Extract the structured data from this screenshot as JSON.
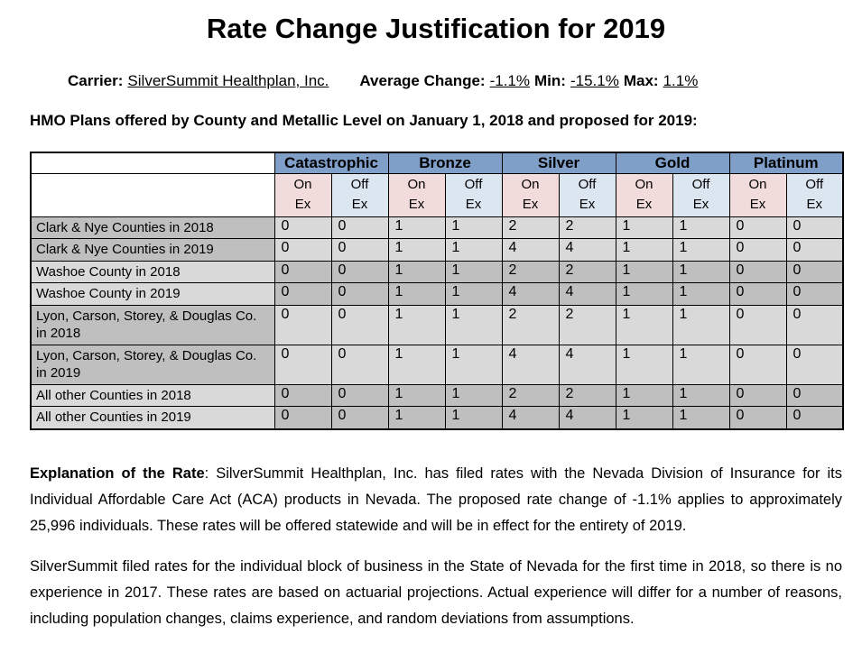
{
  "header": {
    "title": "Rate Change Justification for 2019",
    "carrier_label": "Carrier:",
    "carrier_value": "SilverSummit Healthplan, Inc.",
    "average_change_label": "Average Change:",
    "average_change_value": "-1.1%",
    "min_label": "Min:",
    "min_value": "-15.1%",
    "max_label": "Max:",
    "max_value": "1.1%",
    "table_caption": "HMO Plans offered by County and Metallic Level on January 1, 2018 and proposed for 2019:"
  },
  "table": {
    "metal_levels": [
      "Catastrophic",
      "Bronze",
      "Silver",
      "Gold",
      "Platinum"
    ],
    "exchange_headers": [
      "On\nEx",
      "Off\nEx"
    ],
    "rows": [
      {
        "label": "Clark & Nye Counties in 2018",
        "band": "a",
        "values": [
          0,
          0,
          1,
          1,
          2,
          2,
          1,
          1,
          0,
          0
        ]
      },
      {
        "label": "Clark & Nye Counties in 2019",
        "band": "a",
        "values": [
          0,
          0,
          1,
          1,
          4,
          4,
          1,
          1,
          0,
          0
        ]
      },
      {
        "label": "Washoe County in 2018",
        "band": "b",
        "values": [
          0,
          0,
          1,
          1,
          2,
          2,
          1,
          1,
          0,
          0
        ]
      },
      {
        "label": "Washoe County in 2019",
        "band": "b",
        "values": [
          0,
          0,
          1,
          1,
          4,
          4,
          1,
          1,
          0,
          0
        ]
      },
      {
        "label": "Lyon, Carson, Storey, & Douglas Co. in 2018",
        "band": "a",
        "values": [
          0,
          0,
          1,
          1,
          2,
          2,
          1,
          1,
          0,
          0
        ]
      },
      {
        "label": "Lyon, Carson, Storey, & Douglas Co. in 2019",
        "band": "a",
        "values": [
          0,
          0,
          1,
          1,
          4,
          4,
          1,
          1,
          0,
          0
        ]
      },
      {
        "label": "All other Counties in 2018",
        "band": "b",
        "values": [
          0,
          0,
          1,
          1,
          2,
          2,
          1,
          1,
          0,
          0
        ]
      },
      {
        "label": "All other Counties in 2019",
        "band": "b",
        "values": [
          0,
          0,
          1,
          1,
          4,
          4,
          1,
          1,
          0,
          0
        ]
      }
    ]
  },
  "body": {
    "explanation_lead": "Explanation of the Rate",
    "explanation_text": ": SilverSummit Healthplan, Inc. has filed rates with the Nevada Division of Insurance for its Individual Affordable Care Act (ACA) products in Nevada. The proposed rate change of -1.1% applies to approximately 25,996 individuals. These rates will be offered statewide and will be in effect for the entirety of 2019.",
    "paragraph2": "SilverSummit filed rates for the individual block of business in the State of Nevada for the first time in 2018, so there is no experience in 2017. These rates are based on actuarial projections. Actual experience will differ for a number of reasons, including population changes, claims experience, and random deviations from assumptions."
  },
  "colors": {
    "metal_header_bg": "#7f9fc9",
    "on_ex_bg": "#f2dcdb",
    "off_ex_bg": "#dce6f1",
    "row_gray_dark": "#bfbfbf",
    "row_gray_light": "#d9d9d9",
    "text": "#000000",
    "page_bg": "#ffffff"
  }
}
